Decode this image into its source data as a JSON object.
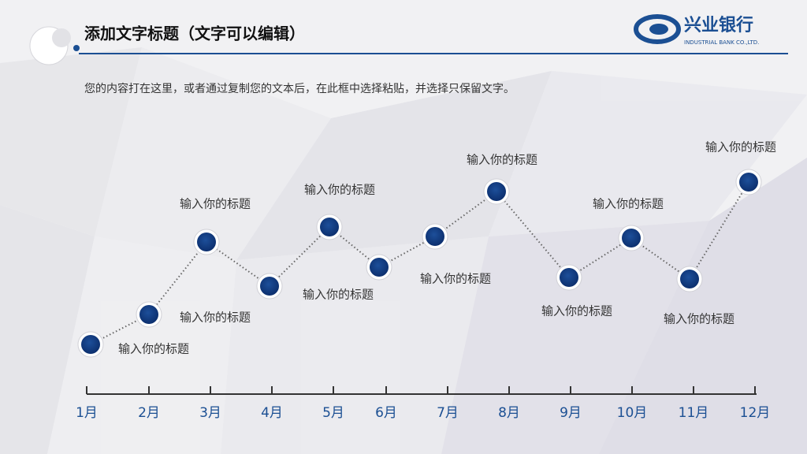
{
  "header": {
    "title": "添加文字标题（文字可以编辑）",
    "logo_cn": "兴业银行",
    "logo_en": "INDUSTRIAL BANK CO.,LTD."
  },
  "body_text": "您的内容打在这里，或者通过复制您的文本后，在此框中选择粘贴，并选择只保留文字。",
  "timeline": {
    "nodes": [
      {
        "month": "1月",
        "label": "输入你的标题"
      },
      {
        "month": "2月",
        "label": "输入你的标题"
      },
      {
        "month": "3月",
        "label": "输入你的标题"
      },
      {
        "month": "4月"
      },
      {
        "month": "5月",
        "label": "输入你的标题"
      },
      {
        "month": "6月",
        "label": "输入你的标题"
      },
      {
        "month": "7月",
        "label": "输入你的标题"
      },
      {
        "month": "8月",
        "label": "输入你的标题"
      },
      {
        "month": "9月",
        "label": "输入你的标题"
      },
      {
        "month": "10月",
        "label": "输入你的标题"
      },
      {
        "month": "11月",
        "label": "输入你的标题"
      },
      {
        "month": "12月",
        "label": "输入你的标题"
      }
    ]
  }
}
